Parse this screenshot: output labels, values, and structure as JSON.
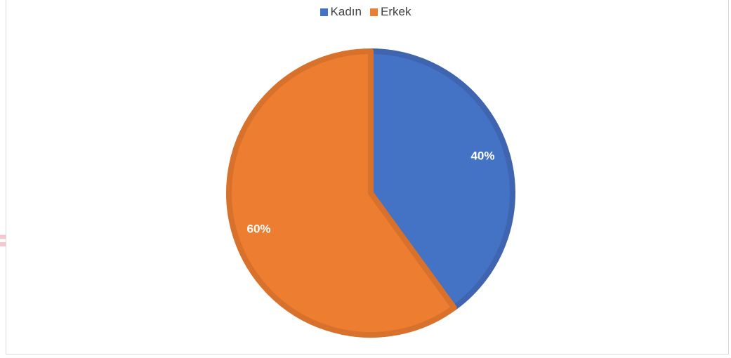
{
  "chart_data": {
    "type": "pie",
    "title": "",
    "legend_position": "top",
    "categories": [
      "Kadın",
      "Erkek"
    ],
    "values": [
      40,
      60
    ],
    "labels": [
      "40%",
      "60%"
    ],
    "colors": [
      "#4472C4",
      "#ED7D31"
    ],
    "border_colors": [
      "#3F65B0",
      "#D8712B"
    ]
  }
}
